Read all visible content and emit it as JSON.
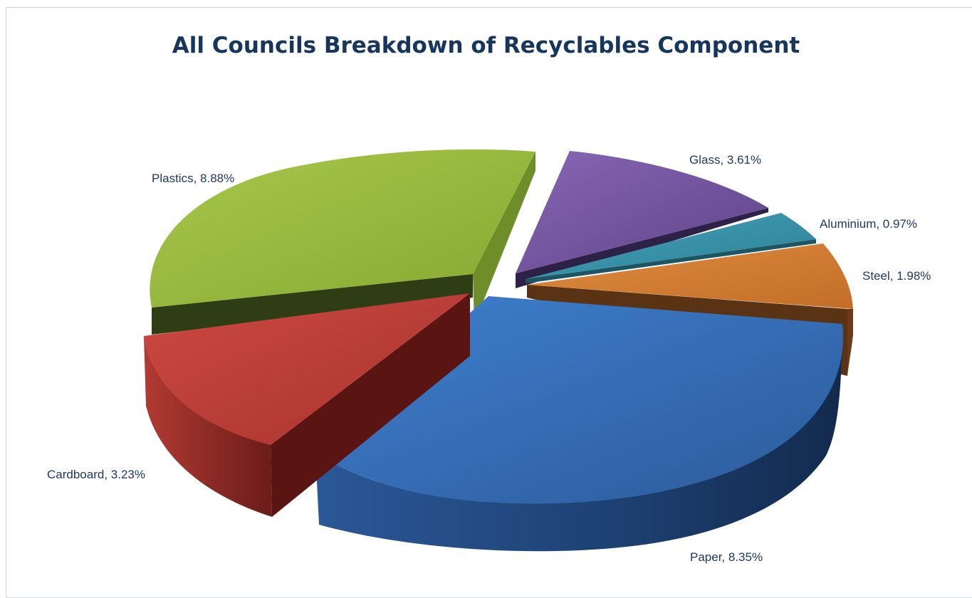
{
  "chart_data": {
    "type": "pie",
    "title": "All Councils Breakdown of Recyclables Component",
    "slices": [
      {
        "label": "Plastics, 8.88%",
        "category": "Plastics",
        "value": 8.88,
        "color": "#9bbb3d"
      },
      {
        "label": "Glass, 3.61%",
        "category": "Glass",
        "value": 3.61,
        "color": "#7a5aa6"
      },
      {
        "label": "Aluminium, 0.97%",
        "category": "Aluminium",
        "value": 0.97,
        "color": "#3b95ad"
      },
      {
        "label": "Steel, 1.98%",
        "category": "Steel",
        "value": 1.98,
        "color": "#d98137"
      },
      {
        "label": "Paper, 8.35%",
        "category": "Paper",
        "value": 8.35,
        "color": "#3a72bd"
      },
      {
        "label": "Cardboard, 3.23%",
        "category": "Cardboard",
        "value": 3.23,
        "color": "#c0403a"
      }
    ],
    "legend": "data labels outside slices",
    "exploded": true,
    "style": "3d"
  }
}
